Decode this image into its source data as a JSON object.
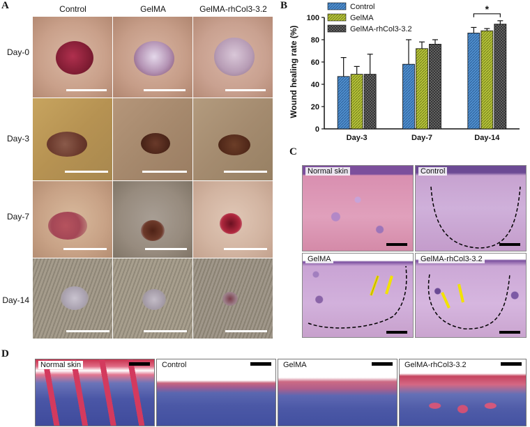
{
  "panels": {
    "a": "A",
    "b": "B",
    "c": "C",
    "d": "D"
  },
  "panel_a": {
    "columns": [
      "Control",
      "GelMA",
      "GelMA-rhCol3-3.2"
    ],
    "rows": [
      "Day-0",
      "Day-3",
      "Day-7",
      "Day-14"
    ]
  },
  "panel_c": {
    "labels": [
      "Normal skin",
      "Control",
      "GelMA",
      "GelMA-rhCol3-3.2"
    ]
  },
  "panel_d": {
    "labels": [
      "Normal skin",
      "Control",
      "GelMA",
      "GelMA-rhCol3-3.2"
    ]
  },
  "chart_data": {
    "type": "bar",
    "title": "",
    "xlabel": "",
    "ylabel": "Wound healing rate (%)",
    "ylim": [
      0,
      100
    ],
    "yticks": [
      0,
      20,
      40,
      60,
      80,
      100
    ],
    "categories": [
      "Day-3",
      "Day-7",
      "Day-14"
    ],
    "series": [
      {
        "name": "Control",
        "values": [
          47,
          58,
          86
        ],
        "errors": [
          17,
          22,
          5
        ],
        "color": "#4f8fcf"
      },
      {
        "name": "GelMA",
        "values": [
          49,
          72,
          88
        ],
        "errors": [
          7,
          6,
          2
        ],
        "color": "#b7c43a"
      },
      {
        "name": "GelMA-rhCol3-3.2",
        "values": [
          49,
          76,
          94
        ],
        "errors": [
          18,
          4,
          3
        ],
        "color": "#6e6e6e"
      }
    ],
    "legend": "top-left",
    "annotations": [
      {
        "text": "*",
        "between": [
          "Control",
          "GelMA-rhCol3-3.2"
        ],
        "category": "Day-14"
      }
    ]
  }
}
